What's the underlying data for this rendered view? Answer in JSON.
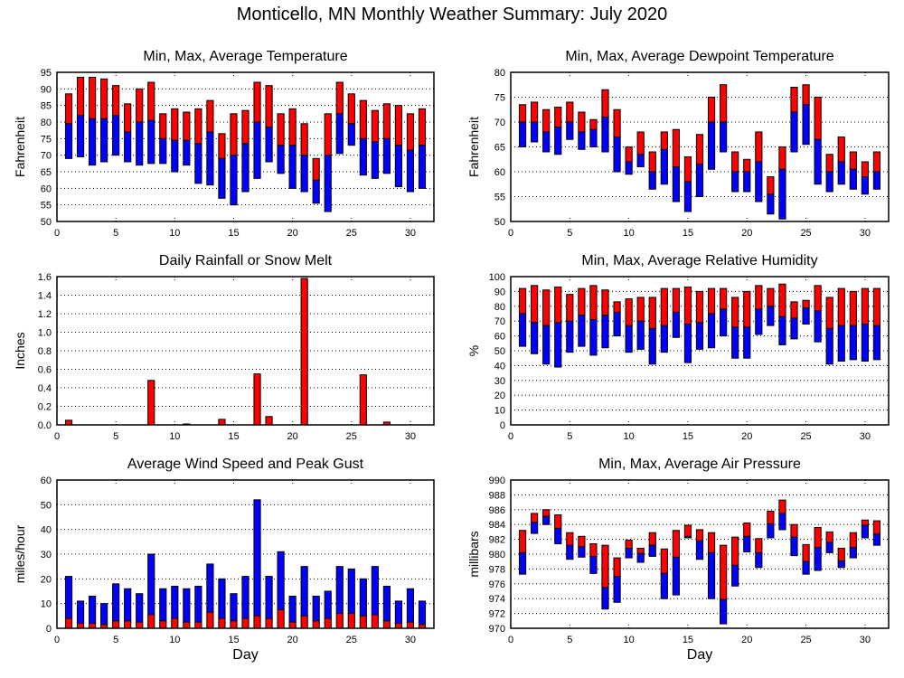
{
  "title": "Monticello, MN Monthly Weather Summary: July 2020",
  "colors": {
    "low": "#0000ff",
    "high": "#ff0000",
    "axis": "#000000"
  },
  "chart_data": [
    {
      "id": "temperature",
      "type": "bar",
      "title": "Min, Max, Average Temperature",
      "xlabel": "",
      "ylabel": "Fahrenheit",
      "xlim": [
        0,
        32
      ],
      "ylim": [
        50,
        95
      ],
      "xticks": [
        0,
        5,
        10,
        15,
        20,
        25,
        30
      ],
      "yticks": [
        50,
        55,
        60,
        65,
        70,
        75,
        80,
        85,
        90,
        95
      ],
      "grid": true,
      "days": [
        1,
        2,
        3,
        4,
        5,
        6,
        7,
        8,
        9,
        10,
        11,
        12,
        13,
        14,
        15,
        16,
        17,
        18,
        19,
        20,
        21,
        22,
        23,
        24,
        25,
        26,
        27,
        28,
        29,
        30,
        31
      ],
      "series": [
        {
          "name": "Min",
          "values": [
            69,
            69.5,
            67,
            68,
            70,
            68,
            67,
            67.5,
            67.5,
            65,
            67,
            61.5,
            61,
            57,
            55,
            59,
            63,
            68,
            64.5,
            60,
            59,
            55.5,
            53,
            70.5,
            73,
            64,
            63,
            64.5,
            60.5,
            59,
            60
          ]
        },
        {
          "name": "Average",
          "values": [
            79.5,
            82,
            81,
            81,
            82,
            77,
            80,
            80.5,
            75,
            74.5,
            74.5,
            73.5,
            77,
            69,
            70,
            73.5,
            80,
            78.5,
            73,
            73,
            70,
            62.5,
            70,
            82.5,
            79.5,
            75,
            74,
            75,
            73,
            71.5,
            73
          ]
        },
        {
          "name": "Max",
          "values": [
            88.5,
            93.5,
            93.5,
            93,
            91,
            85.5,
            90,
            92,
            82.5,
            84,
            83,
            84,
            86.5,
            76.5,
            82.5,
            83.5,
            92,
            91,
            82.5,
            84,
            79.5,
            69,
            82.5,
            92,
            88.5,
            86.5,
            83.5,
            85.5,
            85,
            82.5,
            84
          ]
        }
      ]
    },
    {
      "id": "dewpoint",
      "type": "bar",
      "title": "Min, Max, Average Dewpoint Temperature",
      "xlabel": "",
      "ylabel": "Fahrenheit",
      "xlim": [
        0,
        32
      ],
      "ylim": [
        50,
        80
      ],
      "xticks": [
        0,
        5,
        10,
        15,
        20,
        25,
        30
      ],
      "yticks": [
        50,
        55,
        60,
        65,
        70,
        75,
        80
      ],
      "grid": true,
      "days": [
        1,
        2,
        3,
        4,
        5,
        6,
        7,
        8,
        9,
        10,
        11,
        12,
        13,
        14,
        15,
        16,
        17,
        18,
        19,
        20,
        21,
        22,
        23,
        24,
        25,
        26,
        27,
        28,
        29,
        30,
        31
      ],
      "series": [
        {
          "name": "Min",
          "values": [
            65,
            66,
            64,
            63.5,
            66.5,
            64.5,
            65,
            64,
            60,
            59.5,
            61,
            56.5,
            57.5,
            54,
            52,
            55,
            60.5,
            64,
            56,
            56,
            54,
            51.5,
            50.5,
            64,
            65.5,
            57.5,
            56,
            57.5,
            56.5,
            55.5,
            56.5
          ]
        },
        {
          "name": "Average",
          "values": [
            70,
            70,
            68,
            69,
            70,
            68,
            68.5,
            71,
            67,
            62,
            63.5,
            60,
            64.5,
            61,
            58,
            61.5,
            70,
            70,
            60,
            60,
            62,
            55.5,
            60.5,
            72,
            73.5,
            66.5,
            60,
            62,
            60.5,
            59,
            60
          ]
        },
        {
          "name": "Max",
          "values": [
            73.5,
            74,
            72.5,
            73,
            74,
            72,
            70.5,
            76.5,
            72.5,
            65,
            68,
            64,
            68,
            68.5,
            63,
            67.5,
            75,
            77.5,
            64,
            62.5,
            68,
            59,
            65,
            77,
            77.5,
            75,
            63.5,
            67,
            64,
            62,
            64
          ]
        }
      ]
    },
    {
      "id": "rainfall",
      "type": "bar",
      "title": "Daily Rainfall or Snow Melt",
      "xlabel": "",
      "ylabel": "Inches",
      "xlim": [
        0,
        32
      ],
      "ylim": [
        0,
        1.6
      ],
      "xticks": [
        0,
        5,
        10,
        15,
        20,
        25,
        30
      ],
      "yticks": [
        "0.0",
        "0.2",
        "0.4",
        "0.6",
        "0.8",
        "1.0",
        "1.2",
        "1.4",
        "1.6"
      ],
      "grid": true,
      "days": [
        1,
        2,
        3,
        4,
        5,
        6,
        7,
        8,
        9,
        10,
        11,
        12,
        13,
        14,
        15,
        16,
        17,
        18,
        19,
        20,
        21,
        22,
        23,
        24,
        25,
        26,
        27,
        28,
        29,
        30,
        31
      ],
      "values": [
        0.05,
        0,
        0,
        0,
        0,
        0,
        0,
        0.48,
        0,
        0,
        0.01,
        0,
        0,
        0.06,
        0,
        0,
        0.55,
        0.09,
        0,
        0,
        1.58,
        0,
        0,
        0,
        0,
        0.54,
        0,
        0.03,
        0,
        0,
        0
      ]
    },
    {
      "id": "humidity",
      "type": "bar",
      "title": "Min, Max, Average Relative Humidity",
      "xlabel": "",
      "ylabel": "%",
      "xlim": [
        0,
        32
      ],
      "ylim": [
        0,
        100
      ],
      "xticks": [
        0,
        5,
        10,
        15,
        20,
        25,
        30
      ],
      "yticks": [
        0,
        10,
        20,
        30,
        40,
        50,
        60,
        70,
        80,
        90,
        100
      ],
      "grid": true,
      "days": [
        1,
        2,
        3,
        4,
        5,
        6,
        7,
        8,
        9,
        10,
        11,
        12,
        13,
        14,
        15,
        16,
        17,
        18,
        19,
        20,
        21,
        22,
        23,
        24,
        25,
        26,
        27,
        28,
        29,
        30,
        31
      ],
      "series": [
        {
          "name": "Min",
          "values": [
            53,
            48,
            41,
            39,
            49,
            53,
            47,
            52,
            60,
            49,
            51,
            41,
            49,
            59,
            42,
            51,
            52,
            60,
            45,
            45,
            61,
            67,
            54,
            58,
            68,
            56,
            41,
            43,
            44,
            43,
            44
          ]
        },
        {
          "name": "Average",
          "values": [
            75,
            69,
            67,
            69,
            70,
            74,
            71,
            74,
            76,
            67,
            70,
            65,
            67,
            76,
            68,
            69,
            75,
            78,
            66,
            66,
            78,
            80,
            73,
            72,
            79,
            77,
            65,
            67,
            67,
            68,
            67
          ]
        },
        {
          "name": "Max",
          "values": [
            92,
            94,
            91,
            93,
            88,
            92,
            94,
            91,
            83,
            85,
            86,
            86,
            92,
            92,
            93,
            90,
            92,
            92,
            86,
            90,
            94,
            92,
            95,
            83,
            84,
            94,
            86,
            92,
            90,
            92,
            92
          ]
        }
      ]
    },
    {
      "id": "wind",
      "type": "bar",
      "title": "Average Wind Speed and Peak Gust",
      "xlabel": "Day",
      "ylabel": "miles/hour",
      "xlim": [
        0,
        32
      ],
      "ylim": [
        0,
        60
      ],
      "xticks": [
        0,
        5,
        10,
        15,
        20,
        25,
        30
      ],
      "yticks": [
        0,
        10,
        20,
        30,
        40,
        50,
        60
      ],
      "grid": true,
      "days": [
        1,
        2,
        3,
        4,
        5,
        6,
        7,
        8,
        9,
        10,
        11,
        12,
        13,
        14,
        15,
        16,
        17,
        18,
        19,
        20,
        21,
        22,
        23,
        24,
        25,
        26,
        27,
        28,
        29,
        30,
        31
      ],
      "series": [
        {
          "name": "Average Wind Speed",
          "values": [
            4,
            2,
            2,
            1.5,
            3,
            3,
            2.5,
            5.5,
            3,
            4,
            2.5,
            2.5,
            6.5,
            4,
            3,
            4,
            5,
            4,
            7.5,
            2.5,
            5,
            3,
            4,
            6,
            6,
            5,
            5.5,
            3,
            2,
            2.5,
            1.5
          ]
        },
        {
          "name": "Peak Gust",
          "values": [
            21,
            11,
            13,
            10,
            18,
            16,
            14,
            30,
            16,
            17,
            16,
            17,
            26,
            20,
            14,
            21,
            52,
            21,
            31,
            13,
            25,
            13,
            15,
            25,
            24,
            20,
            25,
            17,
            11,
            16,
            11
          ]
        }
      ]
    },
    {
      "id": "pressure",
      "type": "bar",
      "title": "Min, Max, Average Air Pressure",
      "xlabel": "Day",
      "ylabel": "millibars",
      "xlim": [
        0,
        32
      ],
      "ylim": [
        970,
        990
      ],
      "xticks": [
        0,
        5,
        10,
        15,
        20,
        25,
        30
      ],
      "yticks": [
        970,
        972,
        974,
        976,
        978,
        980,
        982,
        984,
        986,
        988,
        990
      ],
      "grid": true,
      "days": [
        1,
        2,
        3,
        4,
        5,
        6,
        7,
        8,
        9,
        10,
        11,
        12,
        13,
        14,
        15,
        16,
        17,
        18,
        19,
        20,
        21,
        22,
        23,
        24,
        25,
        26,
        27,
        28,
        29,
        30,
        31
      ],
      "series": [
        {
          "name": "Min",
          "values": [
            977.3,
            982.8,
            984,
            981.4,
            979.3,
            979.6,
            977.4,
            972.6,
            973.5,
            979.5,
            978.9,
            979.7,
            974,
            974.5,
            982.2,
            979.3,
            974,
            970.6,
            975.7,
            980.3,
            978.2,
            982.2,
            983.3,
            979.8,
            977.3,
            977.8,
            980.2,
            978.2,
            979.5,
            982.2,
            981.2
          ]
        },
        {
          "name": "Average",
          "values": [
            980.2,
            984.3,
            985.1,
            983.5,
            981.2,
            981,
            979.7,
            975.5,
            977,
            980.8,
            980.1,
            981.2,
            977.4,
            979.6,
            982.4,
            981.8,
            980.2,
            973.9,
            978.5,
            982.4,
            980.2,
            984.1,
            985.5,
            982.3,
            979,
            980.9,
            981.6,
            979.1,
            980.9,
            983.9,
            982.7
          ]
        },
        {
          "name": "Max",
          "values": [
            983.2,
            985.5,
            986,
            985.3,
            982.9,
            982.4,
            981.4,
            981.2,
            979.5,
            981.9,
            980.8,
            982.9,
            980.7,
            983.2,
            983.9,
            983.3,
            982.9,
            981.2,
            982.3,
            984.2,
            982.1,
            985.8,
            987.3,
            984,
            981.3,
            983.6,
            983,
            980.8,
            982.9,
            984.6,
            984.5
          ]
        }
      ]
    }
  ]
}
